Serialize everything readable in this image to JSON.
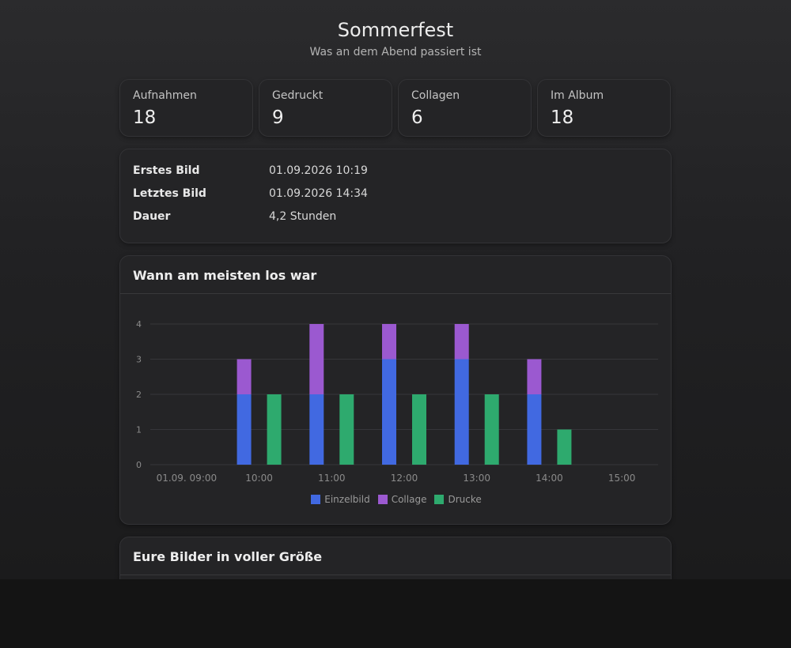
{
  "header": {
    "title": "Sommerfest",
    "subtitle": "Was an dem Abend passiert ist"
  },
  "stats": [
    {
      "label": "Aufnahmen",
      "value": "18"
    },
    {
      "label": "Gedruckt",
      "value": "9"
    },
    {
      "label": "Collagen",
      "value": "6"
    },
    {
      "label": "Im Album",
      "value": "18"
    }
  ],
  "info": [
    {
      "key": "Erstes Bild",
      "value": "01.09.2026 10:19"
    },
    {
      "key": "Letztes Bild",
      "value": "01.09.2026 14:34"
    },
    {
      "key": "Dauer",
      "value": "4,2 Stunden"
    }
  ],
  "chart_section": {
    "title": "Wann am meisten los war"
  },
  "photos_section": {
    "title": "Eure Bilder in voller Größe"
  },
  "colors": {
    "einzelbild": "#4169e1",
    "collage": "#9b59d0",
    "drucke": "#2eaa6e"
  },
  "chart_data": {
    "type": "bar",
    "stacked": true,
    "categories": [
      "01.09. 09:00",
      "10:00",
      "11:00",
      "12:00",
      "13:00",
      "14:00",
      "15:00"
    ],
    "series": [
      {
        "name": "Einzelbild",
        "stack": "aufnahmen",
        "values": [
          0,
          2,
          2,
          3,
          3,
          2,
          0
        ]
      },
      {
        "name": "Collage",
        "stack": "aufnahmen",
        "values": [
          0,
          1,
          2,
          1,
          1,
          1,
          0
        ]
      },
      {
        "name": "Drucke",
        "stack": "drucke",
        "values": [
          0,
          2,
          2,
          2,
          2,
          1,
          0
        ]
      }
    ],
    "ylim": [
      0,
      4
    ],
    "yticks": [
      "0",
      "1",
      "2",
      "3",
      "4"
    ],
    "grid": true,
    "legend": "bottom"
  }
}
